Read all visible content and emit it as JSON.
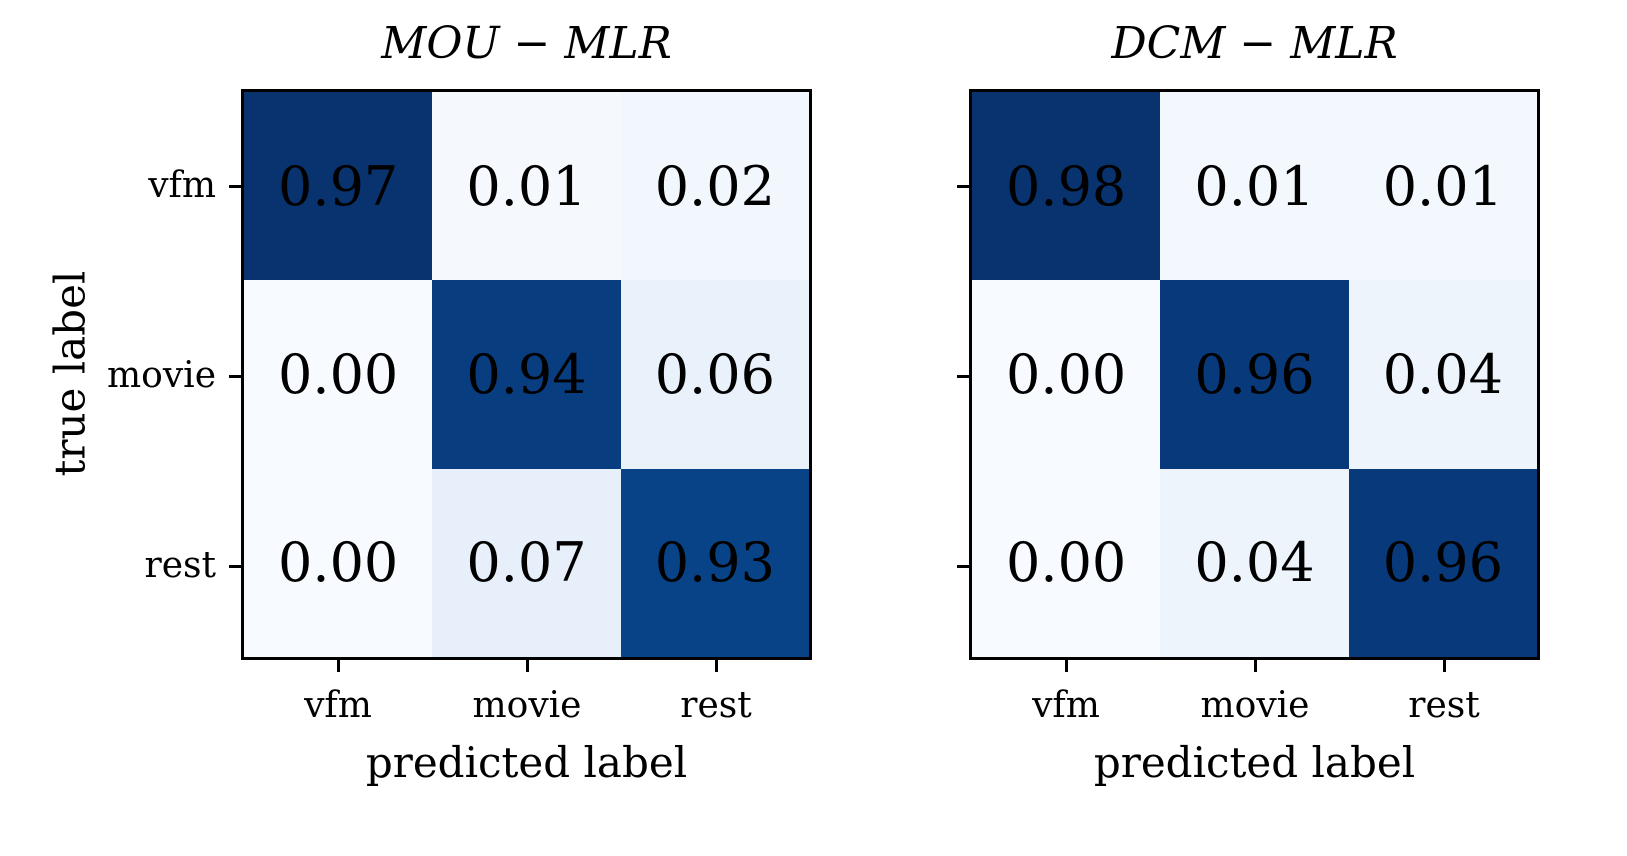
{
  "chart_data": [
    {
      "type": "heatmap",
      "title": "MOU − MLR",
      "xlabel": "predicted label",
      "ylabel": "true label",
      "x_categories": [
        "vfm",
        "movie",
        "rest"
      ],
      "y_categories": [
        "vfm",
        "movie",
        "rest"
      ],
      "values": [
        [
          0.97,
          0.01,
          0.02
        ],
        [
          0.0,
          0.94,
          0.06
        ],
        [
          0.0,
          0.07,
          0.93
        ]
      ],
      "labels": [
        [
          "0.97",
          "0.01",
          "0.02"
        ],
        [
          "0.00",
          "0.94",
          "0.06"
        ],
        [
          "0.00",
          "0.07",
          "0.93"
        ]
      ],
      "colors": [
        [
          "#08336e",
          "#f5f9fe",
          "#f2f7fd"
        ],
        [
          "#f7fbff",
          "#083d7f",
          "#e9f2fb"
        ],
        [
          "#f7fbff",
          "#e7f0fa",
          "#084387"
        ]
      ],
      "colormap": "Blues",
      "vmin": 0,
      "vmax": 1
    },
    {
      "type": "heatmap",
      "title": "DCM − MLR",
      "xlabel": "predicted label",
      "ylabel": "",
      "x_categories": [
        "vfm",
        "movie",
        "rest"
      ],
      "y_categories": [
        "vfm",
        "movie",
        "rest"
      ],
      "values": [
        [
          0.98,
          0.01,
          0.01
        ],
        [
          0.0,
          0.96,
          0.04
        ],
        [
          0.0,
          0.04,
          0.96
        ]
      ],
      "labels": [
        [
          "0.98",
          "0.01",
          "0.01"
        ],
        [
          "0.00",
          "0.96",
          "0.04"
        ],
        [
          "0.00",
          "0.04",
          "0.96"
        ]
      ],
      "colors": [
        [
          "#08336e",
          "#f3f8fe",
          "#f3f8fe"
        ],
        [
          "#f7fbff",
          "#08397a",
          "#edf4fc"
        ],
        [
          "#f7fbff",
          "#edf4fc",
          "#08397a"
        ]
      ],
      "colormap": "Blues",
      "vmin": 0,
      "vmax": 1
    }
  ],
  "left": {
    "title": "MOU − MLR",
    "xlabel": "predicted label",
    "ylabel": "true label",
    "xticks": [
      "vfm",
      "movie",
      "rest"
    ],
    "yticks": [
      "vfm",
      "movie",
      "rest"
    ]
  },
  "right": {
    "title": "DCM − MLR",
    "xlabel": "predicted label",
    "xticks": [
      "vfm",
      "movie",
      "rest"
    ]
  }
}
